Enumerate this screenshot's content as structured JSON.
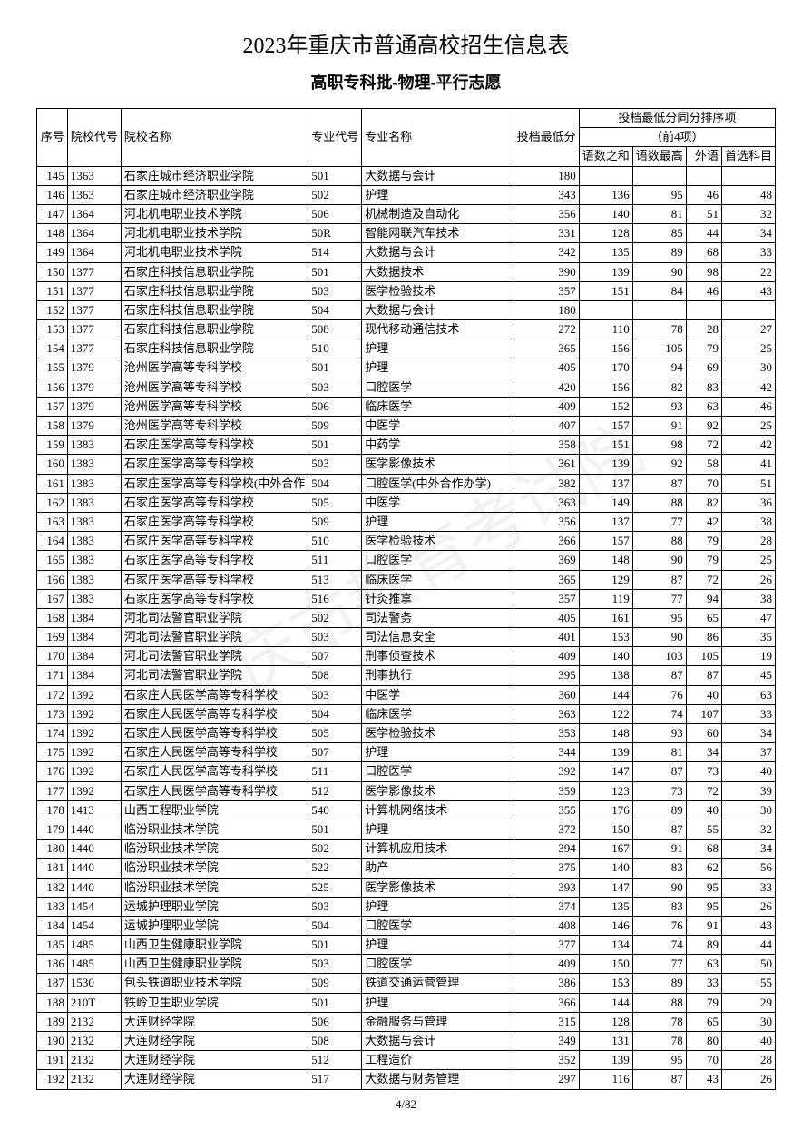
{
  "title": "2023年重庆市普通高校招生信息表",
  "subtitle": "高职专科批-物理-平行志愿",
  "watermark": "重庆市教育考试院",
  "footer": "4/82",
  "columns": {
    "seq": "序号",
    "school_code": "院校代号",
    "school_name": "院校名称",
    "major_code": "专业代号",
    "major_name": "专业名称",
    "score": "投档最低分",
    "sort_group": "投档最低分同分排序项",
    "sort_sub": "（前4项）",
    "s1": "语数之和",
    "s2": "语数最高",
    "s3": "外语",
    "s4": "首选科目"
  },
  "rows": [
    {
      "seq": "145",
      "sc": "1363",
      "sn": "石家庄城市经济职业学院",
      "mc": "501",
      "mn": "大数据与会计",
      "score": "180",
      "s1": "",
      "s2": "",
      "s3": "",
      "s4": ""
    },
    {
      "seq": "146",
      "sc": "1363",
      "sn": "石家庄城市经济职业学院",
      "mc": "502",
      "mn": "护理",
      "score": "343",
      "s1": "136",
      "s2": "95",
      "s3": "46",
      "s4": "48"
    },
    {
      "seq": "147",
      "sc": "1364",
      "sn": "河北机电职业技术学院",
      "mc": "506",
      "mn": "机械制造及自动化",
      "score": "356",
      "s1": "140",
      "s2": "81",
      "s3": "51",
      "s4": "32"
    },
    {
      "seq": "148",
      "sc": "1364",
      "sn": "河北机电职业技术学院",
      "mc": "50R",
      "mn": "智能网联汽车技术",
      "score": "331",
      "s1": "128",
      "s2": "85",
      "s3": "44",
      "s4": "34"
    },
    {
      "seq": "149",
      "sc": "1364",
      "sn": "河北机电职业技术学院",
      "mc": "514",
      "mn": "大数据与会计",
      "score": "342",
      "s1": "135",
      "s2": "89",
      "s3": "68",
      "s4": "33"
    },
    {
      "seq": "150",
      "sc": "1377",
      "sn": "石家庄科技信息职业学院",
      "mc": "501",
      "mn": "大数据技术",
      "score": "390",
      "s1": "139",
      "s2": "90",
      "s3": "98",
      "s4": "22"
    },
    {
      "seq": "151",
      "sc": "1377",
      "sn": "石家庄科技信息职业学院",
      "mc": "503",
      "mn": "医学检验技术",
      "score": "357",
      "s1": "151",
      "s2": "84",
      "s3": "46",
      "s4": "43"
    },
    {
      "seq": "152",
      "sc": "1377",
      "sn": "石家庄科技信息职业学院",
      "mc": "504",
      "mn": "大数据与会计",
      "score": "180",
      "s1": "",
      "s2": "",
      "s3": "",
      "s4": ""
    },
    {
      "seq": "153",
      "sc": "1377",
      "sn": "石家庄科技信息职业学院",
      "mc": "508",
      "mn": "现代移动通信技术",
      "score": "272",
      "s1": "110",
      "s2": "78",
      "s3": "28",
      "s4": "27"
    },
    {
      "seq": "154",
      "sc": "1377",
      "sn": "石家庄科技信息职业学院",
      "mc": "510",
      "mn": "护理",
      "score": "365",
      "s1": "156",
      "s2": "105",
      "s3": "79",
      "s4": "25"
    },
    {
      "seq": "155",
      "sc": "1379",
      "sn": "沧州医学高等专科学校",
      "mc": "501",
      "mn": "护理",
      "score": "405",
      "s1": "170",
      "s2": "94",
      "s3": "69",
      "s4": "30"
    },
    {
      "seq": "156",
      "sc": "1379",
      "sn": "沧州医学高等专科学校",
      "mc": "503",
      "mn": "口腔医学",
      "score": "420",
      "s1": "156",
      "s2": "82",
      "s3": "83",
      "s4": "42"
    },
    {
      "seq": "157",
      "sc": "1379",
      "sn": "沧州医学高等专科学校",
      "mc": "506",
      "mn": "临床医学",
      "score": "409",
      "s1": "152",
      "s2": "93",
      "s3": "63",
      "s4": "46"
    },
    {
      "seq": "158",
      "sc": "1379",
      "sn": "沧州医学高等专科学校",
      "mc": "509",
      "mn": "中医学",
      "score": "407",
      "s1": "157",
      "s2": "91",
      "s3": "92",
      "s4": "25"
    },
    {
      "seq": "159",
      "sc": "1383",
      "sn": "石家庄医学高等专科学校",
      "mc": "501",
      "mn": "中药学",
      "score": "358",
      "s1": "151",
      "s2": "98",
      "s3": "72",
      "s4": "42"
    },
    {
      "seq": "160",
      "sc": "1383",
      "sn": "石家庄医学高等专科学校",
      "mc": "503",
      "mn": "医学影像技术",
      "score": "361",
      "s1": "139",
      "s2": "92",
      "s3": "58",
      "s4": "41"
    },
    {
      "seq": "161",
      "sc": "1383",
      "sn": "石家庄医学高等专科学校(中外合作",
      "mc": "504",
      "mn": "口腔医学(中外合作办学)",
      "score": "382",
      "s1": "137",
      "s2": "87",
      "s3": "70",
      "s4": "51"
    },
    {
      "seq": "162",
      "sc": "1383",
      "sn": "石家庄医学高等专科学校",
      "mc": "505",
      "mn": "中医学",
      "score": "363",
      "s1": "149",
      "s2": "88",
      "s3": "82",
      "s4": "36"
    },
    {
      "seq": "163",
      "sc": "1383",
      "sn": "石家庄医学高等专科学校",
      "mc": "509",
      "mn": "护理",
      "score": "356",
      "s1": "137",
      "s2": "77",
      "s3": "42",
      "s4": "38"
    },
    {
      "seq": "164",
      "sc": "1383",
      "sn": "石家庄医学高等专科学校",
      "mc": "510",
      "mn": "医学检验技术",
      "score": "366",
      "s1": "157",
      "s2": "88",
      "s3": "79",
      "s4": "28"
    },
    {
      "seq": "165",
      "sc": "1383",
      "sn": "石家庄医学高等专科学校",
      "mc": "511",
      "mn": "口腔医学",
      "score": "369",
      "s1": "148",
      "s2": "90",
      "s3": "79",
      "s4": "25"
    },
    {
      "seq": "166",
      "sc": "1383",
      "sn": "石家庄医学高等专科学校",
      "mc": "513",
      "mn": "临床医学",
      "score": "365",
      "s1": "129",
      "s2": "87",
      "s3": "72",
      "s4": "26"
    },
    {
      "seq": "167",
      "sc": "1383",
      "sn": "石家庄医学高等专科学校",
      "mc": "516",
      "mn": "针灸推拿",
      "score": "357",
      "s1": "119",
      "s2": "77",
      "s3": "94",
      "s4": "38"
    },
    {
      "seq": "168",
      "sc": "1384",
      "sn": "河北司法警官职业学院",
      "mc": "502",
      "mn": "司法警务",
      "score": "405",
      "s1": "161",
      "s2": "95",
      "s3": "65",
      "s4": "47"
    },
    {
      "seq": "169",
      "sc": "1384",
      "sn": "河北司法警官职业学院",
      "mc": "503",
      "mn": "司法信息安全",
      "score": "401",
      "s1": "153",
      "s2": "90",
      "s3": "86",
      "s4": "35"
    },
    {
      "seq": "170",
      "sc": "1384",
      "sn": "河北司法警官职业学院",
      "mc": "507",
      "mn": "刑事侦查技术",
      "score": "409",
      "s1": "140",
      "s2": "103",
      "s3": "105",
      "s4": "19"
    },
    {
      "seq": "171",
      "sc": "1384",
      "sn": "河北司法警官职业学院",
      "mc": "508",
      "mn": "刑事执行",
      "score": "395",
      "s1": "138",
      "s2": "87",
      "s3": "87",
      "s4": "45"
    },
    {
      "seq": "172",
      "sc": "1392",
      "sn": "石家庄人民医学高等专科学校",
      "mc": "503",
      "mn": "中医学",
      "score": "360",
      "s1": "144",
      "s2": "76",
      "s3": "40",
      "s4": "63"
    },
    {
      "seq": "173",
      "sc": "1392",
      "sn": "石家庄人民医学高等专科学校",
      "mc": "504",
      "mn": "临床医学",
      "score": "363",
      "s1": "122",
      "s2": "74",
      "s3": "107",
      "s4": "33"
    },
    {
      "seq": "174",
      "sc": "1392",
      "sn": "石家庄人民医学高等专科学校",
      "mc": "505",
      "mn": "医学检验技术",
      "score": "353",
      "s1": "148",
      "s2": "93",
      "s3": "60",
      "s4": "34"
    },
    {
      "seq": "175",
      "sc": "1392",
      "sn": "石家庄人民医学高等专科学校",
      "mc": "507",
      "mn": "护理",
      "score": "344",
      "s1": "139",
      "s2": "81",
      "s3": "34",
      "s4": "37"
    },
    {
      "seq": "176",
      "sc": "1392",
      "sn": "石家庄人民医学高等专科学校",
      "mc": "511",
      "mn": "口腔医学",
      "score": "392",
      "s1": "147",
      "s2": "87",
      "s3": "73",
      "s4": "40"
    },
    {
      "seq": "177",
      "sc": "1392",
      "sn": "石家庄人民医学高等专科学校",
      "mc": "512",
      "mn": "医学影像技术",
      "score": "359",
      "s1": "123",
      "s2": "73",
      "s3": "72",
      "s4": "39"
    },
    {
      "seq": "178",
      "sc": "1413",
      "sn": "山西工程职业学院",
      "mc": "540",
      "mn": "计算机网络技术",
      "score": "355",
      "s1": "176",
      "s2": "89",
      "s3": "40",
      "s4": "30"
    },
    {
      "seq": "179",
      "sc": "1440",
      "sn": "临汾职业技术学院",
      "mc": "501",
      "mn": "护理",
      "score": "372",
      "s1": "150",
      "s2": "87",
      "s3": "55",
      "s4": "32"
    },
    {
      "seq": "180",
      "sc": "1440",
      "sn": "临汾职业技术学院",
      "mc": "502",
      "mn": "计算机应用技术",
      "score": "394",
      "s1": "167",
      "s2": "91",
      "s3": "68",
      "s4": "34"
    },
    {
      "seq": "181",
      "sc": "1440",
      "sn": "临汾职业技术学院",
      "mc": "522",
      "mn": "助产",
      "score": "375",
      "s1": "140",
      "s2": "83",
      "s3": "62",
      "s4": "56"
    },
    {
      "seq": "182",
      "sc": "1440",
      "sn": "临汾职业技术学院",
      "mc": "525",
      "mn": "医学影像技术",
      "score": "393",
      "s1": "147",
      "s2": "90",
      "s3": "95",
      "s4": "33"
    },
    {
      "seq": "183",
      "sc": "1454",
      "sn": "运城护理职业学院",
      "mc": "503",
      "mn": "护理",
      "score": "374",
      "s1": "135",
      "s2": "83",
      "s3": "95",
      "s4": "26"
    },
    {
      "seq": "184",
      "sc": "1454",
      "sn": "运城护理职业学院",
      "mc": "504",
      "mn": "口腔医学",
      "score": "408",
      "s1": "146",
      "s2": "76",
      "s3": "91",
      "s4": "43"
    },
    {
      "seq": "185",
      "sc": "1485",
      "sn": "山西卫生健康职业学院",
      "mc": "501",
      "mn": "护理",
      "score": "377",
      "s1": "134",
      "s2": "74",
      "s3": "89",
      "s4": "44"
    },
    {
      "seq": "186",
      "sc": "1485",
      "sn": "山西卫生健康职业学院",
      "mc": "503",
      "mn": "口腔医学",
      "score": "409",
      "s1": "150",
      "s2": "77",
      "s3": "63",
      "s4": "50"
    },
    {
      "seq": "187",
      "sc": "1530",
      "sn": "包头铁道职业技术学院",
      "mc": "509",
      "mn": "铁道交通运营管理",
      "score": "386",
      "s1": "153",
      "s2": "89",
      "s3": "33",
      "s4": "55"
    },
    {
      "seq": "188",
      "sc": "210T",
      "sn": "铁岭卫生职业学院",
      "mc": "501",
      "mn": "护理",
      "score": "366",
      "s1": "144",
      "s2": "88",
      "s3": "79",
      "s4": "29"
    },
    {
      "seq": "189",
      "sc": "2132",
      "sn": "大连财经学院",
      "mc": "506",
      "mn": "金融服务与管理",
      "score": "315",
      "s1": "128",
      "s2": "78",
      "s3": "65",
      "s4": "30"
    },
    {
      "seq": "190",
      "sc": "2132",
      "sn": "大连财经学院",
      "mc": "508",
      "mn": "大数据与会计",
      "score": "349",
      "s1": "131",
      "s2": "78",
      "s3": "80",
      "s4": "40"
    },
    {
      "seq": "191",
      "sc": "2132",
      "sn": "大连财经学院",
      "mc": "512",
      "mn": "工程造价",
      "score": "352",
      "s1": "139",
      "s2": "95",
      "s3": "70",
      "s4": "28"
    },
    {
      "seq": "192",
      "sc": "2132",
      "sn": "大连财经学院",
      "mc": "517",
      "mn": "大数据与财务管理",
      "score": "297",
      "s1": "116",
      "s2": "87",
      "s3": "43",
      "s4": "26"
    }
  ]
}
